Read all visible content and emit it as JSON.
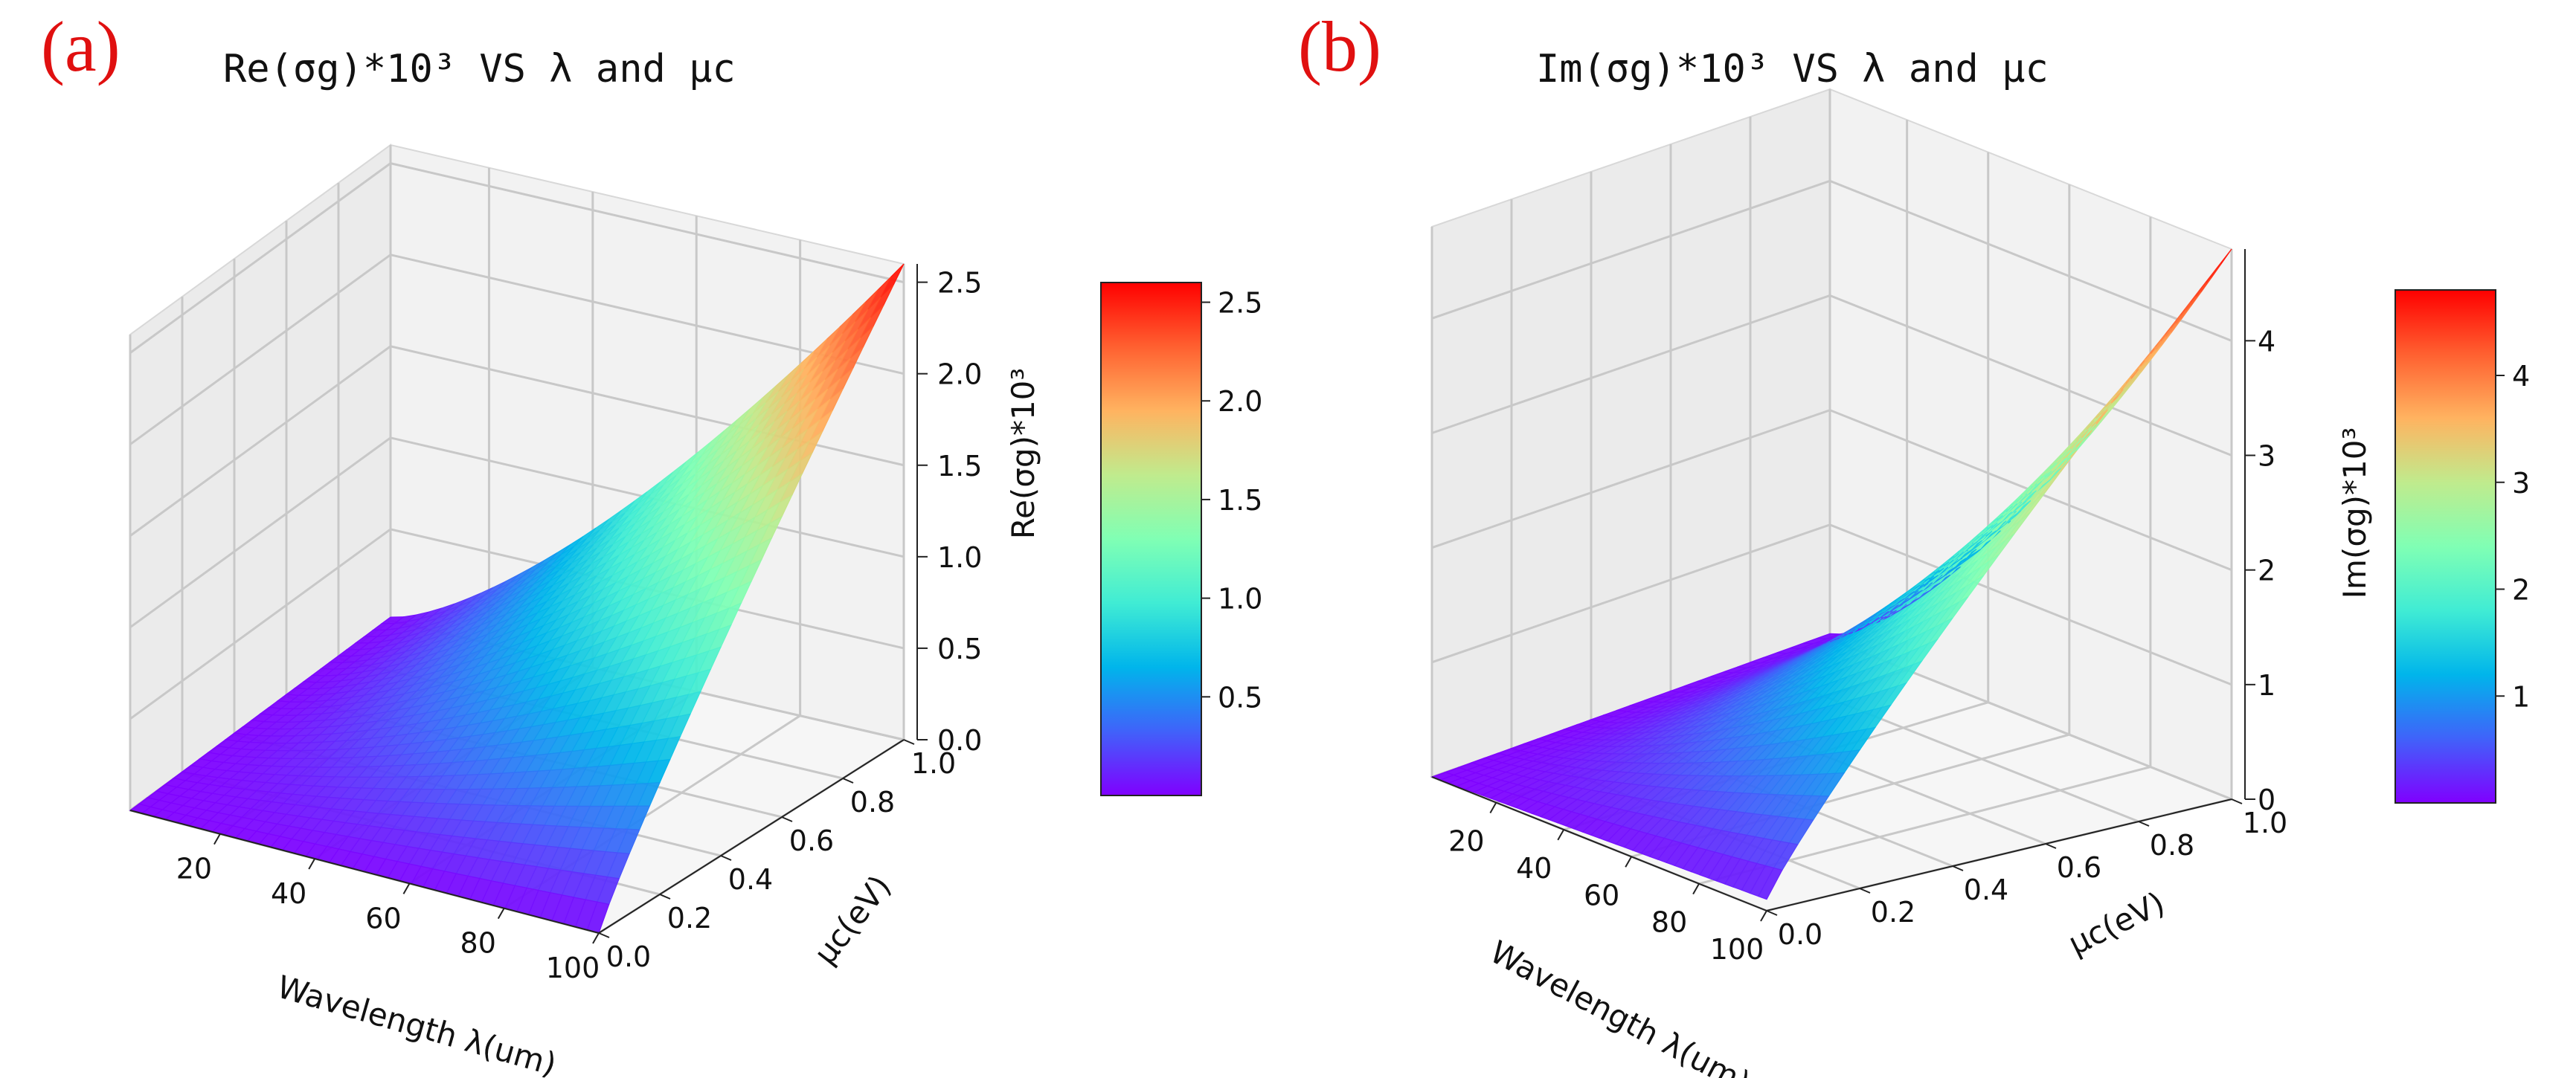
{
  "chart_data": [
    {
      "panel_label": "(a)",
      "type": "surface3d",
      "title": "Re(σg)*10³ VS λ and μc",
      "xlabel": "Wavelength λ(um)",
      "ylabel": "μc(eV)",
      "zlabel": "Re(σg)*10³",
      "x_ticks": [
        "20",
        "40",
        "60",
        "80",
        "100"
      ],
      "y_ticks": [
        "0.0",
        "0.2",
        "0.4",
        "0.6",
        "0.8",
        "1.0"
      ],
      "z_ticks": [
        "0.0",
        "0.5",
        "1.0",
        "1.5",
        "2.0",
        "2.5"
      ],
      "colorbar_ticks": [
        "0.5",
        "1.0",
        "1.5",
        "2.0",
        "2.5"
      ],
      "xlim": [
        1,
        100
      ],
      "ylim": [
        0,
        1
      ],
      "zlim": [
        0,
        2.6
      ],
      "colormap": "rainbow",
      "corner_values": {
        "x_min_mu_min": 0.0,
        "x_max_mu_min": 0.0,
        "x_min_mu_max": 0.02,
        "x_max_mu_max": 2.6
      }
    },
    {
      "panel_label": "(b)",
      "type": "surface3d",
      "title": "Im(σg)*10³ VS λ and μc",
      "xlabel": "Wavelength λ(um)",
      "ylabel": "μc(eV)",
      "zlabel": "Im(σg)*10³",
      "x_ticks": [
        "20",
        "40",
        "60",
        "80",
        "100"
      ],
      "y_ticks": [
        "0.0",
        "0.2",
        "0.4",
        "0.6",
        "0.8",
        "1.0"
      ],
      "z_ticks": [
        "0",
        "1",
        "2",
        "3",
        "4"
      ],
      "colorbar_ticks": [
        "1",
        "2",
        "3",
        "4"
      ],
      "xlim": [
        1,
        100
      ],
      "ylim": [
        0,
        1
      ],
      "zlim": [
        0,
        4.8
      ],
      "colormap": "rainbow",
      "corner_values": {
        "x_min_mu_min": 0.0,
        "x_max_mu_min": 0.1,
        "x_min_mu_max": 0.05,
        "x_max_mu_max": 4.8
      }
    }
  ]
}
